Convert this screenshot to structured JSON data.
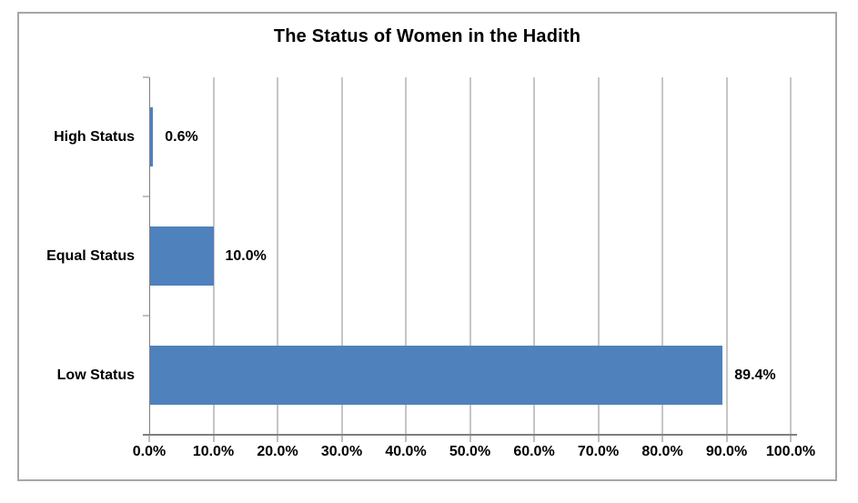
{
  "chart_data": {
    "type": "bar",
    "orientation": "horizontal",
    "title": "The Status of Women in the Hadith",
    "categories": [
      "High Status",
      "Equal Status",
      "Low Status"
    ],
    "values": [
      0.6,
      10.0,
      89.4
    ],
    "value_labels": [
      "0.6%",
      "10.0%",
      "89.4%"
    ],
    "x_tick_labels": [
      "0.0%",
      "10.0%",
      "20.0%",
      "30.0%",
      "40.0%",
      "50.0%",
      "60.0%",
      "70.0%",
      "80.0%",
      "90.0%",
      "100.0%"
    ],
    "xlim": [
      0,
      100
    ],
    "xlabel": "",
    "ylabel": "",
    "grid": "vertical-gridlines-on",
    "legend": "none",
    "colors": {
      "bar": "#4F81BD",
      "gridline": "#8C8C8C",
      "axis": "#7F7F7F",
      "frame_border": "#A6A6A6",
      "text": "#000000",
      "background": "#FFFFFF"
    }
  }
}
